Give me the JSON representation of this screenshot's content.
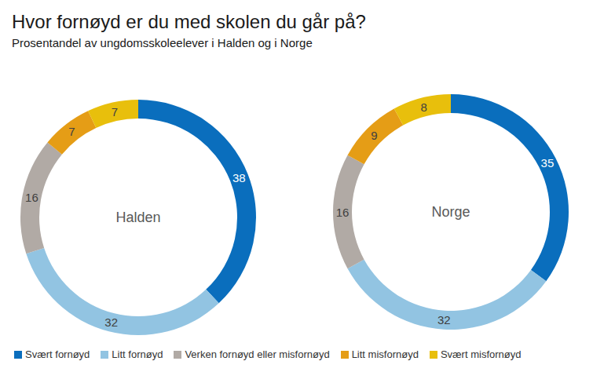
{
  "chart_data": {
    "type": "pie",
    "title": "Hvor fornøyd er du med skolen du går på?",
    "subtitle": "Prosentandel av ungdomsskoleelever i Halden og i Norge",
    "categories": [
      "Svært fornøyd",
      "Litt fornøyd",
      "Verken fornøyd eller misfornøyd",
      "Litt misfornøyd",
      "Svært misfornøyd"
    ],
    "colors": [
      "#0a6ebd",
      "#92c4e2",
      "#b1aaa5",
      "#e59d16",
      "#e8bf0c"
    ],
    "series": [
      {
        "name": "Halden",
        "values": [
          38,
          32,
          16,
          7,
          7
        ]
      },
      {
        "name": "Norge",
        "values": [
          35,
          32,
          16,
          9,
          8
        ]
      }
    ],
    "data_labels": true,
    "legend": "bottom"
  }
}
